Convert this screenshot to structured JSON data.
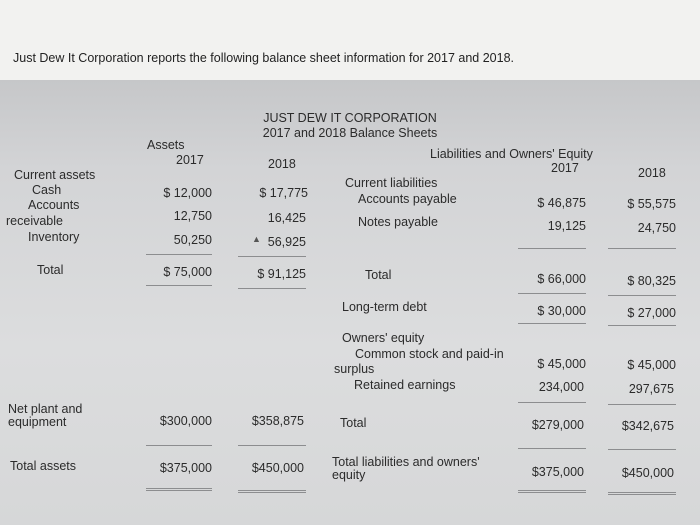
{
  "intro": "Just Dew It Corporation reports the following balance sheet information for 2017 and 2018.",
  "header": {
    "company": "JUST DEW IT CORPORATION",
    "subtitle": "2017 and 2018 Balance Sheets",
    "assets": "Assets",
    "liabilities": "Liabilities and Owners' Equity",
    "year_2017": "2017",
    "year_2018": "2018"
  },
  "assets": {
    "current_assets": "Current assets",
    "cash": {
      "label": "Cash",
      "v2017": "$ 12,000",
      "v2018": "$  17,775"
    },
    "receivable": {
      "label_1": "Accounts",
      "label_2": "receivable",
      "v2017": "12,750",
      "v2018": "16,425"
    },
    "inventory": {
      "label": "Inventory",
      "v2017": "50,250",
      "v2018": "56,925"
    },
    "total": {
      "label": "Total",
      "v2017": "$ 75,000",
      "v2018": "$  91,125"
    },
    "net_plant": {
      "label": "Net plant and equipment",
      "v2017": "$300,000",
      "v2018": "$358,875"
    },
    "total_assets": {
      "label": "Total assets",
      "v2017": "$375,000",
      "v2018": "$450,000"
    }
  },
  "liabilities": {
    "current_liabilities": "Current liabilities",
    "accounts_payable": {
      "label": "Accounts payable",
      "v2017": "$ 46,875",
      "v2018": "$ 55,575"
    },
    "notes_payable": {
      "label": "Notes payable",
      "v2017": "19,125",
      "v2018": "24,750"
    },
    "total": {
      "label": "Total",
      "v2017": "$ 66,000",
      "v2018": "$ 80,325"
    },
    "long_term_debt": {
      "label": "Long-term debt",
      "v2017": "$ 30,000",
      "v2018": "$ 27,000"
    },
    "owners_equity": "Owners' equity",
    "common_stock": {
      "label_1": "Common stock and paid-in",
      "label_2": "surplus",
      "v2017": "$ 45,000",
      "v2018": "$ 45,000"
    },
    "retained": {
      "label": "Retained earnings",
      "v2017": "234,000",
      "v2018": "297,675"
    },
    "total_equity": {
      "label": "Total",
      "v2017": "$279,000",
      "v2018": "$342,675"
    },
    "total_le": {
      "label": "Total liabilities and owners' equity",
      "v2017": "$375,000",
      "v2018": "$450,000"
    }
  }
}
